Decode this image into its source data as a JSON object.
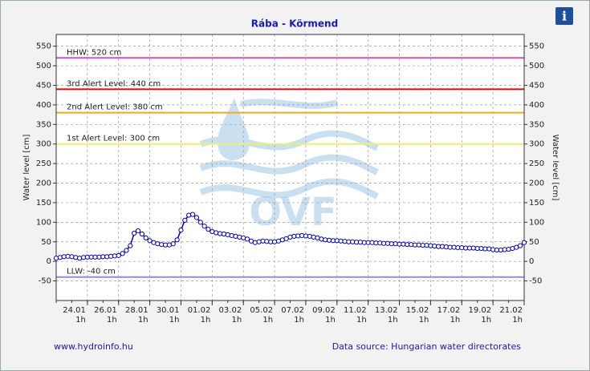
{
  "chart_data": {
    "type": "line",
    "title": "Rába - Körmend",
    "y_label": "Water level [cm]",
    "y2_label": "Water level [cm]",
    "watermark": "OVF",
    "info_icon": "i",
    "footer_left": "www.hydroinfo.hu",
    "footer_right": "Data source: Hungarian water directorates",
    "xlim": [
      "22.01 1h",
      "21.02 1h"
    ],
    "xticks": [
      {
        "value": "24.01 1h",
        "label": [
          "24.01",
          "1h"
        ]
      },
      {
        "value": "26.01 1h",
        "label": [
          "26.01",
          "1h"
        ]
      },
      {
        "value": "28.01 1h",
        "label": [
          "28.01",
          "1h"
        ]
      },
      {
        "value": "30.01 1h",
        "label": [
          "30.01",
          "1h"
        ]
      },
      {
        "value": "01.02 1h",
        "label": [
          "01.02",
          "1h"
        ]
      },
      {
        "value": "03.02 1h",
        "label": [
          "03.02",
          "1h"
        ]
      },
      {
        "value": "05.02 1h",
        "label": [
          "05.02",
          "1h"
        ]
      },
      {
        "value": "07.02 1h",
        "label": [
          "07.02",
          "1h"
        ]
      },
      {
        "value": "09.02 1h",
        "label": [
          "09.02",
          "1h"
        ]
      },
      {
        "value": "11.02 1h",
        "label": [
          "11.02",
          "1h"
        ]
      },
      {
        "value": "13.02 1h",
        "label": [
          "13.02",
          "1h"
        ]
      },
      {
        "value": "15.02 1h",
        "label": [
          "15.02",
          "1h"
        ]
      },
      {
        "value": "17.02 1h",
        "label": [
          "17.02",
          "1h"
        ]
      },
      {
        "value": "19.02 1h",
        "label": [
          "19.02",
          "1h"
        ]
      },
      {
        "value": "21.02 1h",
        "label": [
          "21.02",
          "1h"
        ]
      }
    ],
    "ylim": [
      -100,
      580
    ],
    "yticks": [
      -50,
      0,
      50,
      100,
      150,
      200,
      250,
      300,
      350,
      400,
      450,
      500,
      550
    ],
    "y2lim": [
      -100,
      580
    ],
    "y2ticks": [
      -50,
      0,
      50,
      100,
      150,
      200,
      250,
      300,
      350,
      400,
      450,
      500,
      550
    ],
    "grid": true,
    "reference_lines": [
      {
        "label": "HHW: 520 cm",
        "value": 520,
        "color": "#d04fd0"
      },
      {
        "label": "3rd Alert Level: 440 cm",
        "value": 440,
        "color": "#d01010"
      },
      {
        "label": "2nd Alert Level: 380 cm",
        "value": 380,
        "color": "#f4a820"
      },
      {
        "label": "1st Alert Level: 300 cm",
        "value": 300,
        "color": "#eeee70"
      },
      {
        "label": "LLW: -40 cm",
        "value": -40,
        "color": "#9090d0"
      }
    ],
    "x": [
      "22.01 1h",
      "22.01 7h",
      "22.01 13h",
      "22.01 19h",
      "23.01 1h",
      "23.01 7h",
      "23.01 13h",
      "23.01 19h",
      "24.01 1h",
      "24.01 7h",
      "24.01 13h",
      "24.01 19h",
      "25.01 1h",
      "25.01 7h",
      "25.01 13h",
      "25.01 19h",
      "26.01 1h",
      "26.01 7h",
      "26.01 13h",
      "26.01 19h",
      "27.01 1h",
      "27.01 7h",
      "27.01 13h",
      "27.01 19h",
      "28.01 1h",
      "28.01 7h",
      "28.01 13h",
      "28.01 19h",
      "29.01 1h",
      "29.01 7h",
      "29.01 13h",
      "29.01 19h",
      "30.01 1h",
      "30.01 7h",
      "30.01 13h",
      "30.01 19h",
      "31.01 1h",
      "31.01 7h",
      "31.01 13h",
      "31.01 19h",
      "01.02 1h",
      "01.02 7h",
      "01.02 13h",
      "01.02 19h",
      "02.02 1h",
      "02.02 7h",
      "02.02 13h",
      "02.02 19h",
      "03.02 1h",
      "03.02 7h",
      "03.02 13h",
      "03.02 19h",
      "04.02 1h",
      "04.02 7h",
      "04.02 13h",
      "04.02 19h",
      "05.02 1h",
      "05.02 7h",
      "05.02 13h",
      "05.02 19h",
      "06.02 1h",
      "06.02 7h",
      "06.02 13h",
      "06.02 19h",
      "07.02 1h",
      "07.02 7h",
      "07.02 13h",
      "07.02 19h",
      "08.02 1h",
      "08.02 7h",
      "08.02 13h",
      "08.02 19h",
      "09.02 1h",
      "09.02 7h",
      "09.02 13h",
      "09.02 19h",
      "10.02 1h",
      "10.02 7h",
      "10.02 13h",
      "10.02 19h",
      "11.02 1h",
      "11.02 7h",
      "11.02 13h",
      "11.02 19h",
      "12.02 1h",
      "12.02 7h",
      "12.02 13h",
      "12.02 19h",
      "13.02 1h",
      "13.02 7h",
      "13.02 13h",
      "13.02 19h",
      "14.02 1h",
      "14.02 7h",
      "14.02 13h",
      "14.02 19h",
      "15.02 1h",
      "15.02 7h",
      "15.02 13h",
      "15.02 19h",
      "16.02 1h",
      "16.02 7h",
      "16.02 13h",
      "16.02 19h",
      "17.02 1h",
      "17.02 7h",
      "17.02 13h",
      "17.02 19h",
      "18.02 1h",
      "18.02 7h",
      "18.02 13h",
      "18.02 19h",
      "19.02 1h",
      "19.02 7h",
      "19.02 13h",
      "19.02 19h",
      "20.02 1h",
      "20.02 7h",
      "20.02 13h",
      "20.02 19h",
      "21.02 1h"
    ],
    "series": [
      {
        "color": "#0000b0",
        "values": [
          8,
          10,
          12,
          13,
          12,
          10,
          8,
          10,
          11,
          11,
          11,
          11,
          12,
          12,
          13,
          14,
          15,
          20,
          28,
          40,
          72,
          78,
          70,
          60,
          53,
          48,
          45,
          43,
          42,
          42,
          45,
          55,
          80,
          105,
          118,
          120,
          112,
          100,
          90,
          82,
          76,
          73,
          71,
          70,
          68,
          66,
          64,
          62,
          60,
          57,
          52,
          48,
          50,
          52,
          51,
          50,
          50,
          52,
          55,
          58,
          62,
          64,
          65,
          66,
          65,
          64,
          62,
          60,
          57,
          55,
          54,
          53,
          53,
          52,
          51,
          50,
          50,
          49,
          49,
          48,
          48,
          48,
          47,
          47,
          46,
          46,
          45,
          45,
          44,
          44,
          43,
          43,
          42,
          42,
          41,
          41,
          40,
          39,
          38,
          38,
          37,
          36,
          36,
          35,
          35,
          34,
          34,
          34,
          33,
          33,
          32,
          32,
          30,
          29,
          29,
          30,
          31,
          33,
          36,
          40,
          48
        ]
      }
    ]
  }
}
